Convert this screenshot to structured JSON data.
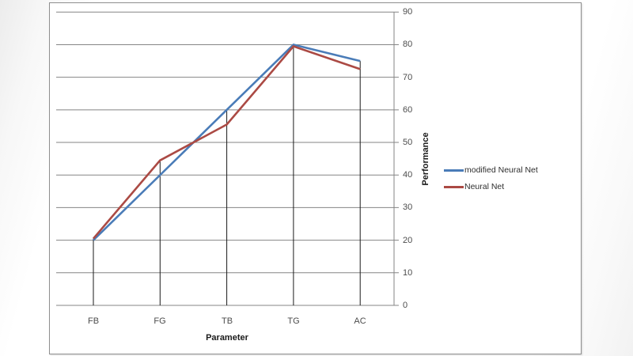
{
  "chart_data": {
    "type": "line",
    "title": "",
    "xlabel": "Parameter",
    "ylabel": "Performance",
    "categories": [
      "FB",
      "FG",
      "TB",
      "TG",
      "AC"
    ],
    "series": [
      {
        "name": "modified Neural Net",
        "color": "#4a7cb8",
        "values": [
          20,
          40,
          60,
          80,
          75
        ]
      },
      {
        "name": "Neural Net",
        "color": "#ab4a44",
        "values": [
          20.5,
          44.5,
          55.5,
          79.5,
          72.5
        ]
      }
    ],
    "ylim": [
      0,
      90
    ],
    "ytick_step": 10,
    "ytick_labels": [
      "0",
      "10",
      "20",
      "30",
      "40",
      "50",
      "60",
      "70",
      "80",
      "90"
    ],
    "grid": "horizontal",
    "y_axis_side": "right",
    "legend_position": "right",
    "drop_lines": true
  },
  "colors": {
    "gridline": "#858585",
    "axis_line": "#858585",
    "drop_line": "#1a1a1a",
    "card_background": "#ffffff",
    "card_border": "#8f8f8f"
  }
}
